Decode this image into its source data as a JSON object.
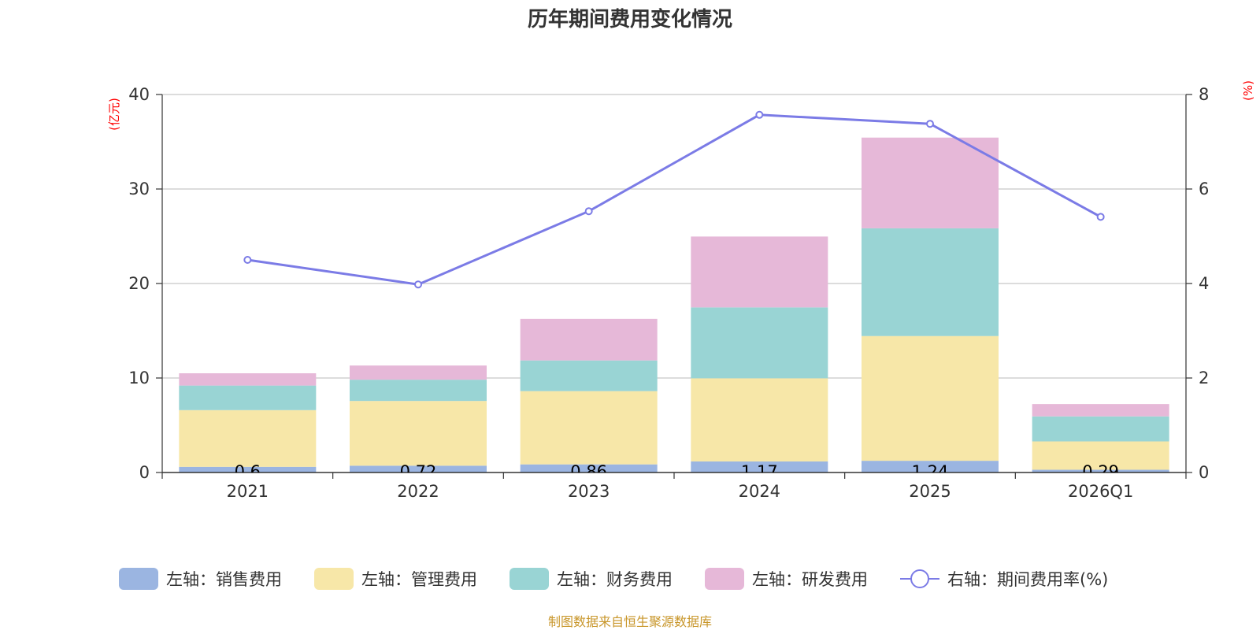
{
  "chart_data": {
    "type": "bar",
    "title": "历年期间费用变化情况",
    "categories": [
      "2021",
      "2022",
      "2023",
      "2024",
      "2025",
      "2026Q1"
    ],
    "left_axis": {
      "unit": "(亿元)",
      "ylim": [
        0,
        40
      ],
      "ticks": [
        0,
        10,
        20,
        30,
        40
      ]
    },
    "right_axis": {
      "unit": "(%)",
      "ylim": [
        0,
        8
      ],
      "ticks": [
        0,
        2,
        4,
        6,
        8
      ]
    },
    "series": [
      {
        "name": "左轴：销售费用",
        "kind": "bar",
        "stack": "total",
        "color": "#9bb5e1",
        "values": [
          0.6,
          0.72,
          0.86,
          1.17,
          1.24,
          0.29
        ],
        "labels": [
          "0.6",
          "0.72",
          "0.86",
          "1.17",
          "1.24",
          "0.29"
        ]
      },
      {
        "name": "左轴：管理费用",
        "kind": "bar",
        "stack": "total",
        "color": "#f7e7a8",
        "values": [
          6.0,
          6.85,
          7.75,
          8.8,
          13.2,
          3.0
        ]
      },
      {
        "name": "左轴：财务费用",
        "kind": "bar",
        "stack": "total",
        "color": "#99d4d4",
        "values": [
          2.6,
          2.25,
          3.25,
          7.5,
          11.4,
          2.65
        ]
      },
      {
        "name": "左轴：研发费用",
        "kind": "bar",
        "stack": "total",
        "color": "#e6b8d8",
        "values": [
          1.3,
          1.5,
          4.4,
          7.5,
          9.6,
          1.3
        ]
      },
      {
        "name": "右轴：期间费用率(%)",
        "kind": "line",
        "axis": "right",
        "color": "#7b7be6",
        "values": [
          4.5,
          3.98,
          5.53,
          7.57,
          7.38,
          5.41
        ]
      }
    ],
    "source": "制图数据来自恒生聚源数据库"
  }
}
